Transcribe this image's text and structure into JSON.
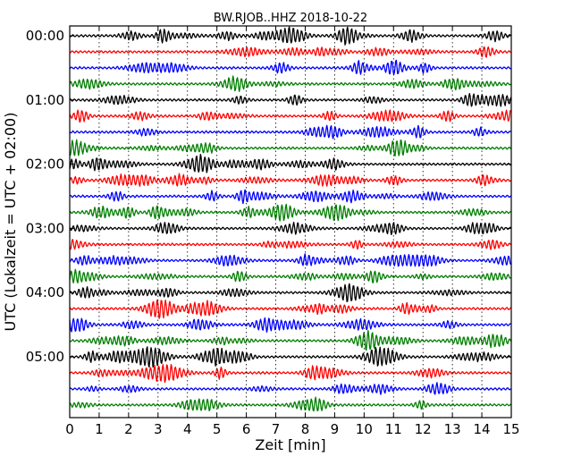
{
  "chart_data": {
    "type": "line",
    "title": "BW.RJOB..HHZ 2018-10-22",
    "xlabel": "Zeit  [min]",
    "ylabel": "UTC (Lokalzeit = UTC + 02:00)",
    "xlim": [
      0,
      15
    ],
    "x_ticks": [
      "0",
      "1",
      "2",
      "3",
      "4",
      "5",
      "6",
      "7",
      "8",
      "9",
      "10",
      "11",
      "12",
      "13",
      "14",
      "15"
    ],
    "y_ticks": [
      "00:00",
      "01:00",
      "02:00",
      "03:00",
      "04:00",
      "05:00"
    ],
    "interval_minutes": 15,
    "rows": 24,
    "vertical_grid": true,
    "colors": [
      "#000000",
      "#ff0000",
      "#0000ff",
      "#007f00"
    ],
    "station": "BW.RJOB..HHZ",
    "date": "2018-10-22"
  }
}
